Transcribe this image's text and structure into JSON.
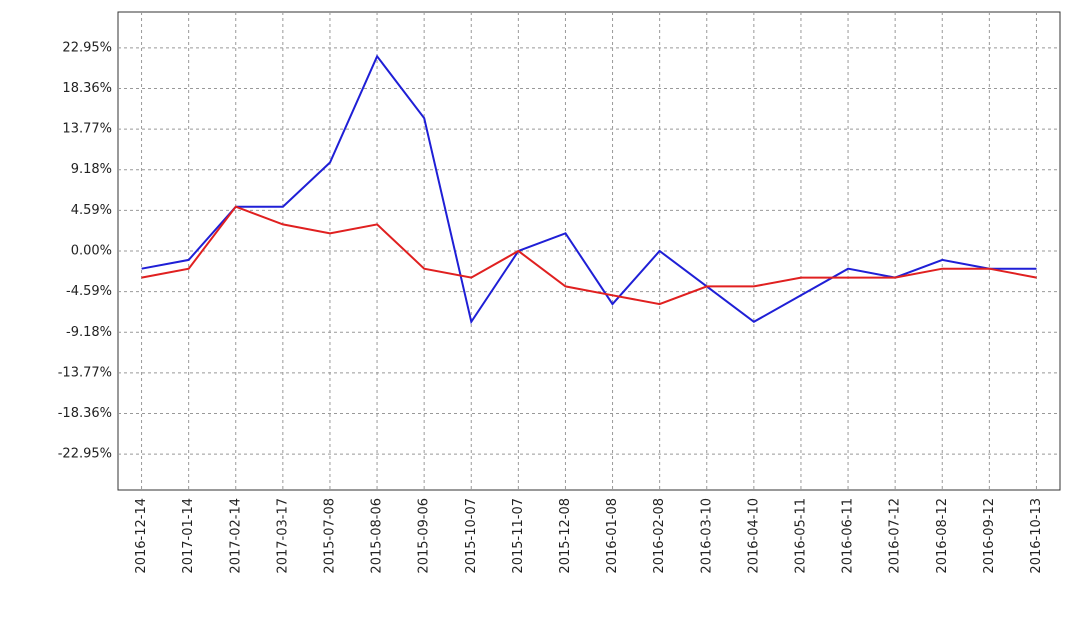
{
  "chart_data": {
    "type": "line",
    "categories": [
      "2016-12-14",
      "2017-01-14",
      "2017-02-14",
      "2017-03-17",
      "2015-07-08",
      "2015-08-06",
      "2015-09-06",
      "2015-10-07",
      "2015-11-07",
      "2015-12-08",
      "2016-01-08",
      "2016-02-08",
      "2016-03-10",
      "2016-04-10",
      "2016-05-11",
      "2016-06-11",
      "2016-07-12",
      "2016-08-12",
      "2016-09-12",
      "2016-10-13"
    ],
    "series": [
      {
        "color": "#1f1fd6",
        "values": [
          -2,
          -1,
          5,
          5,
          10,
          22,
          15,
          -8,
          0,
          2,
          -6,
          0,
          -4,
          -8,
          -5,
          -2,
          -3,
          -1,
          -2,
          -2
        ]
      },
      {
        "color": "#e02020",
        "values": [
          -3,
          -2,
          5,
          3,
          2,
          3,
          -2,
          -3,
          0,
          -4,
          -5,
          -6,
          -4,
          -4,
          -3,
          -3,
          -3,
          -2,
          -2,
          -3
        ]
      }
    ],
    "ylim": [
      -27,
      27
    ],
    "yticks": [
      {
        "value": -22.95,
        "label": "-22.95%"
      },
      {
        "value": -18.36,
        "label": "-18.36%"
      },
      {
        "value": -13.77,
        "label": "-13.77%"
      },
      {
        "value": -9.18,
        "label": "-9.18%"
      },
      {
        "value": -4.59,
        "label": "-4.59%"
      },
      {
        "value": 0,
        "label": "0.00%"
      },
      {
        "value": 4.59,
        "label": "4.59%"
      },
      {
        "value": 9.18,
        "label": "9.18%"
      },
      {
        "value": 13.77,
        "label": "13.77%"
      },
      {
        "value": 18.36,
        "label": "18.36%"
      },
      {
        "value": 22.95,
        "label": "22.95%"
      }
    ],
    "grid": true
  }
}
